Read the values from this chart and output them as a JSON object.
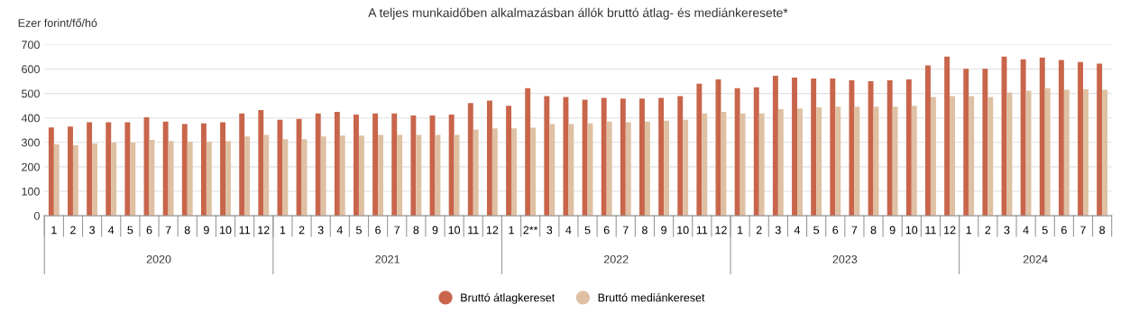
{
  "chart_data": {
    "type": "bar",
    "title": "A teljes munkaidőben alkalmazásban állók bruttó átlag- és mediánkeresete*",
    "ylabel": "Ezer forint/fő/hó",
    "categories": [
      "1",
      "2",
      "3",
      "4",
      "5",
      "6",
      "7",
      "8",
      "9",
      "10",
      "11",
      "12",
      "1",
      "2",
      "3",
      "4",
      "5",
      "6",
      "7",
      "8",
      "9",
      "10",
      "11",
      "12",
      "1",
      "2**",
      "3",
      "4",
      "5",
      "6",
      "7",
      "8",
      "9",
      "10",
      "11",
      "12",
      "1",
      "2",
      "3",
      "4",
      "5",
      "6",
      "7",
      "8",
      "9",
      "10",
      "11",
      "12",
      "1",
      "2",
      "3",
      "4",
      "5",
      "6",
      "7",
      "8"
    ],
    "series": [
      {
        "name": "Bruttó átlagkereset",
        "color": "#c8654a",
        "values": [
          361,
          365,
          382,
          382,
          382,
          403,
          385,
          375,
          378,
          382,
          418,
          432,
          392,
          396,
          418,
          425,
          414,
          418,
          418,
          410,
          410,
          414,
          461,
          471,
          450,
          522,
          489,
          486,
          475,
          482,
          479,
          479,
          482,
          489,
          540,
          558,
          522,
          525,
          572,
          565,
          561,
          561,
          554,
          550,
          554,
          558,
          615,
          651,
          601,
          601,
          651,
          640,
          647,
          637,
          629,
          622
        ]
      },
      {
        "name": "Bruttó mediánkereset",
        "color": "#dfc0a3",
        "values": [
          292,
          288,
          296,
          299,
          299,
          310,
          306,
          303,
          303,
          306,
          324,
          331,
          313,
          313,
          324,
          328,
          328,
          331,
          331,
          331,
          331,
          331,
          353,
          357,
          357,
          360,
          375,
          375,
          378,
          385,
          382,
          385,
          389,
          392,
          418,
          425,
          418,
          418,
          436,
          439,
          443,
          446,
          446,
          446,
          446,
          450,
          486,
          489,
          489,
          486,
          504,
          511,
          522,
          515,
          517,
          515
        ]
      }
    ],
    "annotations": [
      "2020",
      "2021",
      "2022",
      "2023",
      "2024"
    ],
    "ylim": [
      0,
      700
    ],
    "yticks": [
      0,
      100,
      200,
      300,
      400,
      500,
      600,
      700
    ],
    "grid": "y",
    "legend": "bottom"
  }
}
